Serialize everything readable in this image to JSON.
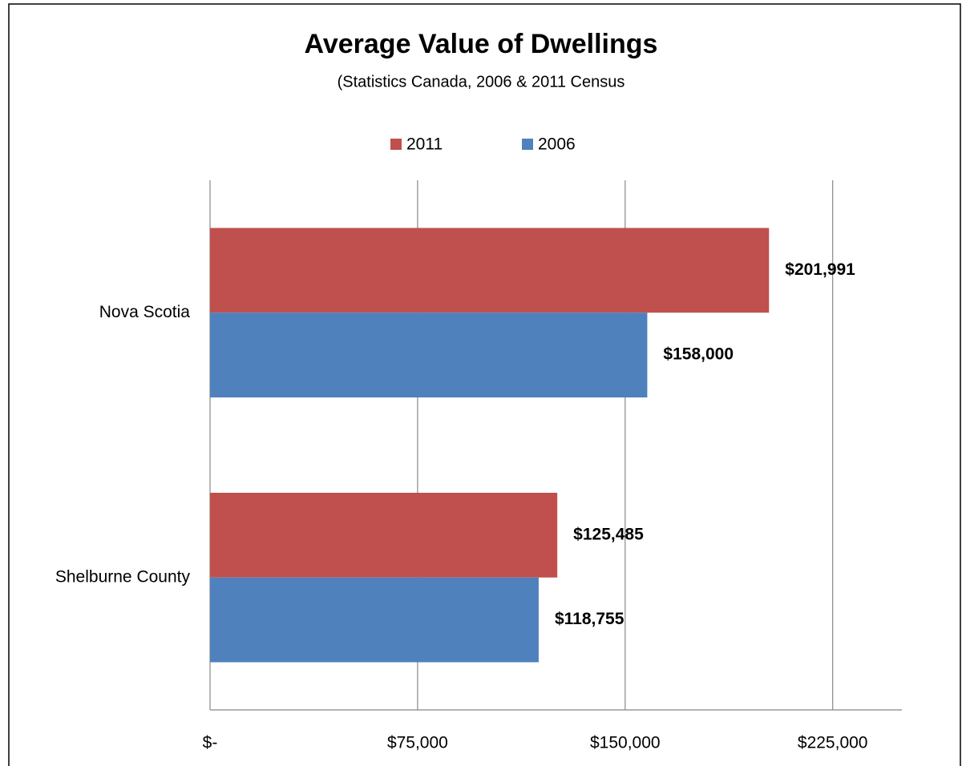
{
  "chart_data": {
    "type": "barh",
    "title": "Average Value of Dwellings",
    "subtitle": "(Statistics Canada, 2006 & 2011 Census",
    "categories": [
      "Nova Scotia",
      "Shelburne County"
    ],
    "series": [
      {
        "name": "2011",
        "color": "#c0504d",
        "values": [
          201991,
          125485
        ],
        "value_labels": [
          "$201,991",
          "$125,485"
        ]
      },
      {
        "name": "2006",
        "color": "#4f81bd",
        "values": [
          158000,
          118755
        ],
        "value_labels": [
          "$158,000",
          "$118,755"
        ]
      }
    ],
    "xlim": [
      0,
      250000
    ],
    "xticks": [
      {
        "value": 0,
        "label": "$-"
      },
      {
        "value": 75000,
        "label": "$75,000"
      },
      {
        "value": 150000,
        "label": "$150,000"
      },
      {
        "value": 225000,
        "label": "$225,000"
      }
    ],
    "grid": true,
    "legend": "top"
  }
}
